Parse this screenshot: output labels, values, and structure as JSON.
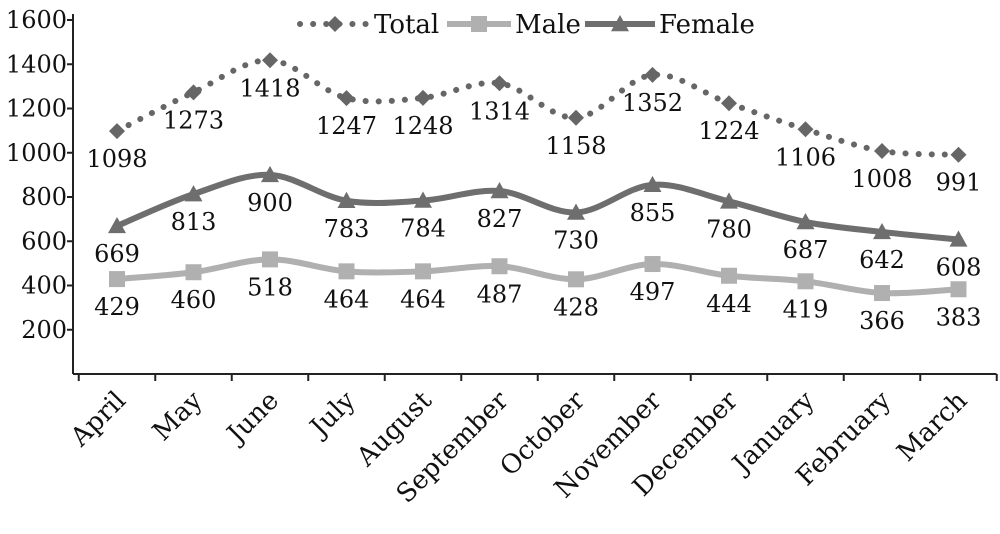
{
  "chart_data": {
    "type": "line",
    "title": "",
    "xlabel": "",
    "ylabel": "",
    "ylim": [
      0,
      1600
    ],
    "yticks": [
      200,
      400,
      600,
      800,
      1000,
      1200,
      1400,
      1600
    ],
    "grid": false,
    "legend_position": "top-center",
    "categories": [
      "April",
      "May",
      "June",
      "July",
      "August",
      "September",
      "October",
      "November",
      "December",
      "January",
      "February",
      "March"
    ],
    "series": [
      {
        "name": "Total",
        "values": [
          1098,
          1273,
          1418,
          1247,
          1248,
          1314,
          1158,
          1352,
          1224,
          1106,
          1008,
          991
        ],
        "color": "#666666",
        "line_style": "dotted",
        "marker": "diamond",
        "label_position": "below"
      },
      {
        "name": "Male",
        "values": [
          429,
          460,
          518,
          464,
          464,
          487,
          428,
          497,
          444,
          419,
          366,
          383
        ],
        "color": "#b0b0b0",
        "line_style": "solid",
        "marker": "square",
        "label_position": "below"
      },
      {
        "name": "Female",
        "values": [
          669,
          813,
          900,
          783,
          784,
          827,
          730,
          855,
          780,
          687,
          642,
          608
        ],
        "color": "#6e6e6e",
        "line_style": "solid",
        "marker": "triangle",
        "label_position": "below"
      }
    ]
  }
}
